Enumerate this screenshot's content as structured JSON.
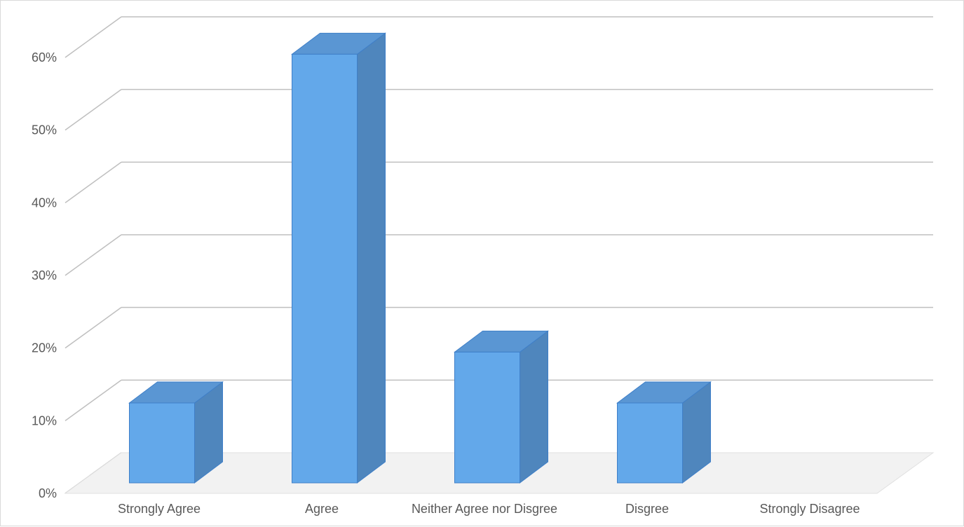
{
  "chart_data": {
    "type": "bar",
    "style": "3d-column",
    "categories": [
      "Strongly Agree",
      "Agree",
      "Neither Agree nor Disgree",
      "Disgree",
      "Strongly Disagree"
    ],
    "series": [
      {
        "values": [
          11,
          59,
          18,
          11,
          0
        ]
      }
    ],
    "yticks": [
      "0%",
      "10%",
      "20%",
      "30%",
      "40%",
      "50%",
      "60%"
    ],
    "ylim": [
      0,
      60
    ],
    "grid": true,
    "legend": "none",
    "colors": {
      "bar_front": "#63a8ea",
      "bar_top": "#5a96d3",
      "bar_side": "#4f86bd",
      "bar_edge": "#3f7fc8",
      "gridline": "#bfbfbf",
      "floor": "#f2f2f2",
      "text": "#595959"
    }
  }
}
